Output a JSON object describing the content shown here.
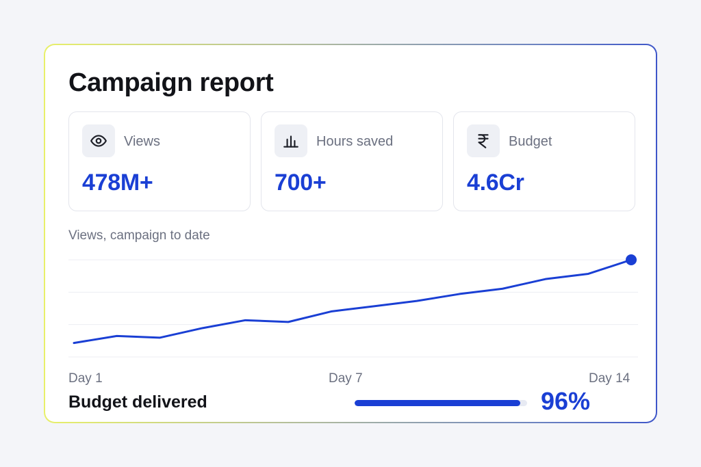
{
  "report": {
    "title": "Campaign report"
  },
  "stats": [
    {
      "label": "Views",
      "value": "478M+",
      "icon": "eye-icon"
    },
    {
      "label": "Hours saved",
      "value": "700+",
      "icon": "bar-chart-icon"
    },
    {
      "label": "Budget",
      "value": "4.6Cr",
      "icon": "rupee-icon"
    }
  ],
  "chart": {
    "caption": "Views, campaign to date",
    "x_labels": [
      "Day 1",
      "Day 7",
      "Day 14"
    ]
  },
  "chart_data": {
    "type": "line",
    "x": [
      1,
      2,
      3,
      4,
      5,
      6,
      7,
      8,
      9,
      10,
      11,
      12,
      13,
      14
    ],
    "series": [
      {
        "values": [
          5,
          13,
          11,
          22,
          31,
          29,
          41,
          47,
          53,
          61,
          67,
          78,
          84,
          100
        ]
      }
    ],
    "x_tick_labels": [
      "Day 1",
      "Day 7",
      "Day 14"
    ],
    "ylim": [
      0,
      100
    ],
    "grid": true,
    "line_color": "#1a3fd4"
  },
  "progress": {
    "label": "Budget delivered",
    "value_text": "96%",
    "fraction": 0.96
  },
  "colors": {
    "accent": "#1a3fd4",
    "text": "#121318",
    "muted": "#6b7080"
  }
}
